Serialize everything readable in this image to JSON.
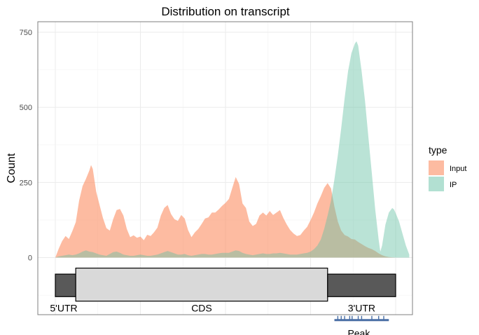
{
  "chart_data": {
    "type": "area",
    "title": "Distribution on transcript",
    "xlabel": "",
    "ylabel": "Count",
    "x_range": [
      0,
      100
    ],
    "ylim": [
      -190,
      785
    ],
    "y_ticks": [
      0,
      250,
      500,
      750
    ],
    "grid": true,
    "legend": {
      "title": "type",
      "position": "right"
    },
    "series": [
      {
        "name": "Input",
        "color": "#FC8D62",
        "points": [
          [
            0,
            0
          ],
          [
            1,
            30
          ],
          [
            2,
            55
          ],
          [
            3,
            72
          ],
          [
            4,
            62
          ],
          [
            5,
            88
          ],
          [
            6,
            118
          ],
          [
            7,
            190
          ],
          [
            8,
            238
          ],
          [
            9,
            262
          ],
          [
            10,
            290
          ],
          [
            10.5,
            308
          ],
          [
            11,
            295
          ],
          [
            12,
            220
          ],
          [
            13,
            175
          ],
          [
            14,
            132
          ],
          [
            15,
            98
          ],
          [
            16,
            90
          ],
          [
            17,
            128
          ],
          [
            18,
            158
          ],
          [
            19,
            162
          ],
          [
            20,
            140
          ],
          [
            21,
            95
          ],
          [
            22,
            68
          ],
          [
            23,
            74
          ],
          [
            24,
            66
          ],
          [
            25,
            70
          ],
          [
            26,
            58
          ],
          [
            27,
            76
          ],
          [
            28,
            72
          ],
          [
            29,
            84
          ],
          [
            30,
            100
          ],
          [
            31,
            140
          ],
          [
            32,
            165
          ],
          [
            33,
            175
          ],
          [
            34,
            145
          ],
          [
            35,
            128
          ],
          [
            36,
            122
          ],
          [
            37,
            142
          ],
          [
            38,
            130
          ],
          [
            39,
            92
          ],
          [
            40,
            68
          ],
          [
            41,
            84
          ],
          [
            42,
            95
          ],
          [
            43,
            112
          ],
          [
            44,
            130
          ],
          [
            45,
            134
          ],
          [
            46,
            150
          ],
          [
            47,
            150
          ],
          [
            48,
            160
          ],
          [
            49,
            172
          ],
          [
            50,
            182
          ],
          [
            51,
            195
          ],
          [
            52,
            232
          ],
          [
            53,
            268
          ],
          [
            54,
            245
          ],
          [
            55,
            180
          ],
          [
            56,
            165
          ],
          [
            57,
            120
          ],
          [
            58,
            105
          ],
          [
            59,
            112
          ],
          [
            60,
            140
          ],
          [
            61,
            150
          ],
          [
            62,
            140
          ],
          [
            63,
            155
          ],
          [
            64,
            142
          ],
          [
            65,
            150
          ],
          [
            66,
            158
          ],
          [
            67,
            132
          ],
          [
            68,
            110
          ],
          [
            69,
            92
          ],
          [
            70,
            80
          ],
          [
            71,
            72
          ],
          [
            72,
            75
          ],
          [
            73,
            90
          ],
          [
            74,
            102
          ],
          [
            75,
            125
          ],
          [
            76,
            150
          ],
          [
            77,
            180
          ],
          [
            78,
            205
          ],
          [
            79,
            232
          ],
          [
            80,
            248
          ],
          [
            81,
            230
          ],
          [
            82,
            170
          ],
          [
            83,
            120
          ],
          [
            84,
            90
          ],
          [
            85,
            75
          ],
          [
            86,
            70
          ],
          [
            87,
            62
          ],
          [
            88,
            60
          ],
          [
            89,
            52
          ],
          [
            90,
            45
          ],
          [
            91,
            38
          ],
          [
            92,
            32
          ],
          [
            93,
            28
          ],
          [
            94,
            22
          ],
          [
            95,
            14
          ],
          [
            96,
            8
          ],
          [
            97,
            4
          ],
          [
            98,
            2
          ],
          [
            99,
            1
          ],
          [
            100,
            0
          ]
        ]
      },
      {
        "name": "IP",
        "color": "#66C2A5",
        "points": [
          [
            0,
            0
          ],
          [
            1,
            4
          ],
          [
            2,
            6
          ],
          [
            3,
            8
          ],
          [
            4,
            10
          ],
          [
            5,
            8
          ],
          [
            6,
            10
          ],
          [
            7,
            14
          ],
          [
            8,
            20
          ],
          [
            9,
            24
          ],
          [
            10,
            20
          ],
          [
            11,
            18
          ],
          [
            12,
            14
          ],
          [
            13,
            10
          ],
          [
            14,
            8
          ],
          [
            15,
            6
          ],
          [
            16,
            12
          ],
          [
            17,
            18
          ],
          [
            18,
            20
          ],
          [
            19,
            16
          ],
          [
            20,
            10
          ],
          [
            21,
            8
          ],
          [
            22,
            6
          ],
          [
            23,
            6
          ],
          [
            24,
            8
          ],
          [
            25,
            10
          ],
          [
            26,
            8
          ],
          [
            27,
            6
          ],
          [
            28,
            6
          ],
          [
            29,
            8
          ],
          [
            30,
            10
          ],
          [
            31,
            14
          ],
          [
            32,
            18
          ],
          [
            33,
            22
          ],
          [
            34,
            18
          ],
          [
            35,
            14
          ],
          [
            36,
            10
          ],
          [
            37,
            10
          ],
          [
            38,
            12
          ],
          [
            39,
            8
          ],
          [
            40,
            6
          ],
          [
            41,
            8
          ],
          [
            42,
            10
          ],
          [
            43,
            12
          ],
          [
            44,
            12
          ],
          [
            45,
            10
          ],
          [
            46,
            10
          ],
          [
            47,
            12
          ],
          [
            48,
            14
          ],
          [
            49,
            16
          ],
          [
            50,
            16
          ],
          [
            51,
            16
          ],
          [
            52,
            20
          ],
          [
            53,
            24
          ],
          [
            54,
            22
          ],
          [
            55,
            16
          ],
          [
            56,
            12
          ],
          [
            57,
            10
          ],
          [
            58,
            8
          ],
          [
            59,
            10
          ],
          [
            60,
            12
          ],
          [
            61,
            14
          ],
          [
            62,
            12
          ],
          [
            63,
            12
          ],
          [
            64,
            14
          ],
          [
            65,
            14
          ],
          [
            66,
            16
          ],
          [
            67,
            14
          ],
          [
            68,
            12
          ],
          [
            69,
            10
          ],
          [
            70,
            10
          ],
          [
            71,
            10
          ],
          [
            72,
            12
          ],
          [
            73,
            14
          ],
          [
            74,
            16
          ],
          [
            75,
            20
          ],
          [
            76,
            28
          ],
          [
            77,
            40
          ],
          [
            78,
            60
          ],
          [
            79,
            95
          ],
          [
            80,
            140
          ],
          [
            81,
            190
          ],
          [
            82,
            260
          ],
          [
            83,
            340
          ],
          [
            84,
            430
          ],
          [
            85,
            530
          ],
          [
            86,
            620
          ],
          [
            87,
            680
          ],
          [
            88,
            712
          ],
          [
            88.5,
            720
          ],
          [
            89,
            705
          ],
          [
            90,
            620
          ],
          [
            91,
            520
          ],
          [
            92,
            400
          ],
          [
            93,
            280
          ],
          [
            94,
            160
          ],
          [
            95,
            60
          ],
          [
            95.5,
            20
          ],
          [
            96,
            40
          ],
          [
            97,
            110
          ],
          [
            98,
            150
          ],
          [
            99,
            165
          ],
          [
            99.5,
            160
          ],
          [
            100,
            148
          ],
          [
            101,
            120
          ],
          [
            102,
            80
          ],
          [
            103,
            40
          ],
          [
            104,
            10
          ]
        ]
      }
    ],
    "gene_model": {
      "segments": [
        {
          "label": "5'UTR",
          "start": 0,
          "end": 6,
          "fill": "#595959"
        },
        {
          "label": "CDS",
          "start": 6,
          "end": 80,
          "fill": "#D9D9D9"
        },
        {
          "label": "3'UTR",
          "start": 80,
          "end": 100,
          "fill": "#595959"
        }
      ]
    },
    "peak": {
      "label": "Peak",
      "color": "#4A6FA5",
      "start": 82,
      "end": 98,
      "ticks": [
        83,
        84,
        85,
        86.5,
        87.2,
        89,
        90,
        93,
        95,
        96.5
      ]
    }
  }
}
